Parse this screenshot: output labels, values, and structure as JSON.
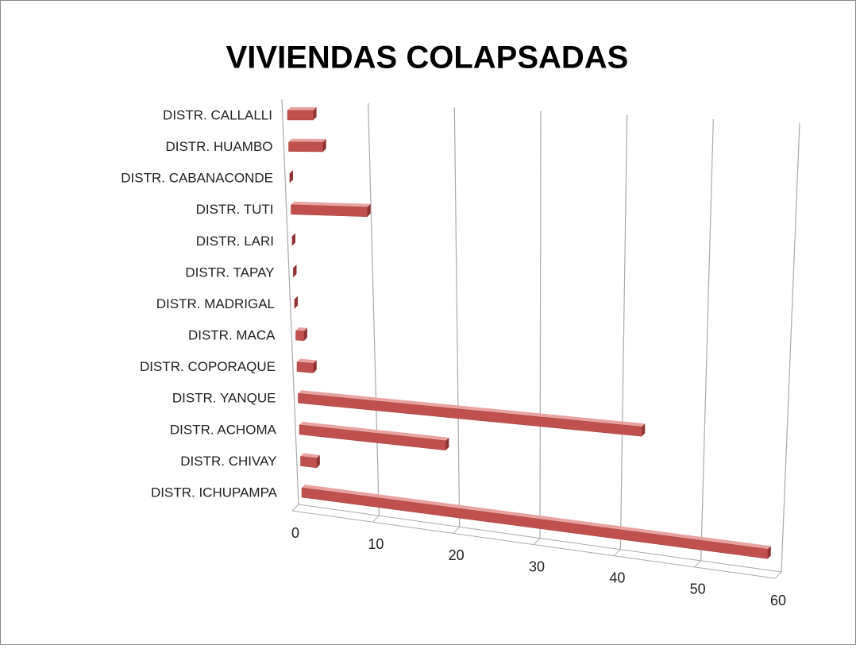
{
  "chart_data": {
    "type": "bar",
    "orientation": "horizontal",
    "title": "VIVIENDAS COLAPSADAS",
    "categories": [
      "DISTR. CALLALLI",
      "DISTR. HUAMBO",
      "DISTR. CABANACONDE",
      "DISTR. TUTI",
      "DISTR. LARI",
      "DISTR. TAPAY",
      "DISTR. MADRIGAL",
      "DISTR. MACA",
      "DISTR. COPORAQUE",
      "DISTR. YANQUE",
      "DISTR. ACHOMA",
      "DISTR. CHIVAY",
      "DISTR. ICHUPAMPA"
    ],
    "values": [
      3,
      4,
      0,
      9,
      0,
      0,
      0,
      1,
      2,
      42,
      18,
      2,
      58
    ],
    "color": "#c0504d",
    "xlim": [
      0,
      60
    ],
    "xticks": [
      0,
      10,
      20,
      30,
      40,
      50,
      60
    ],
    "grid": true
  }
}
